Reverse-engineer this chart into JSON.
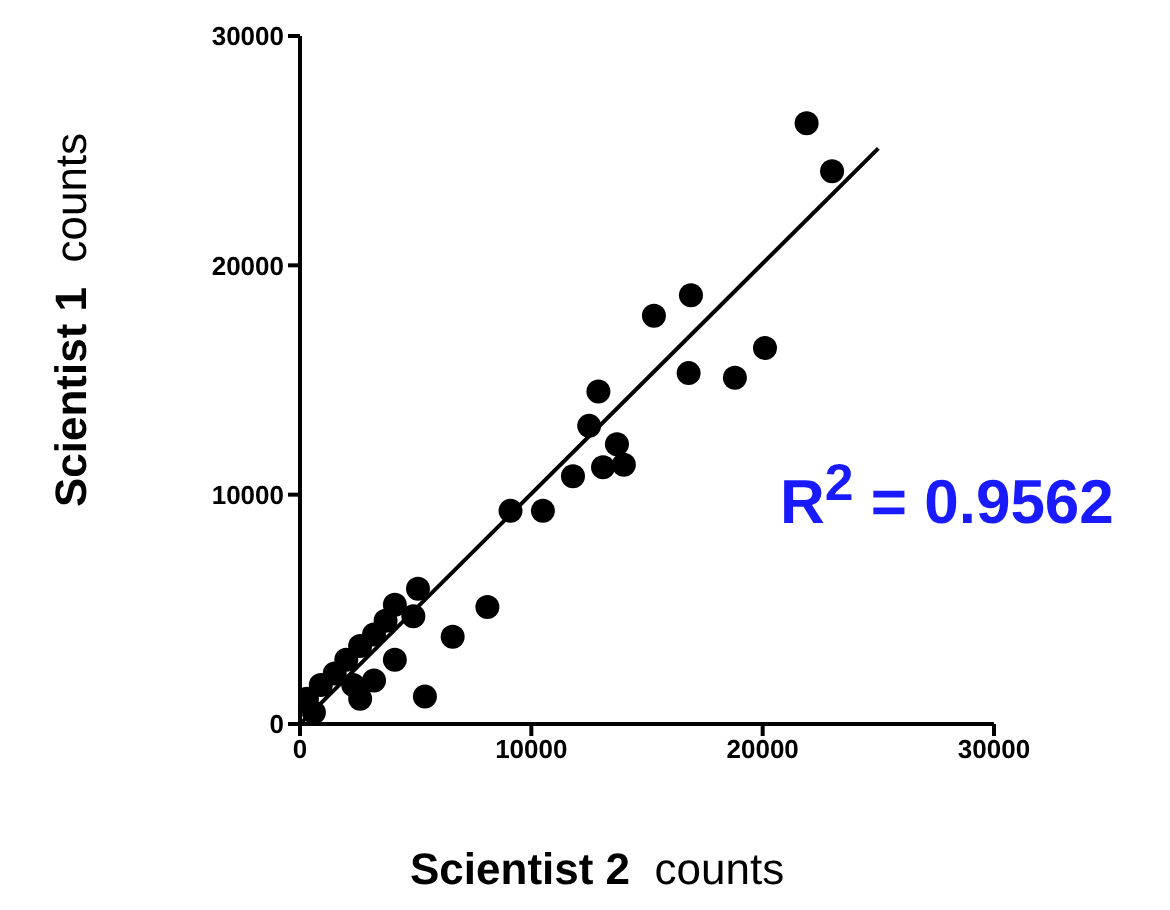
{
  "chart_data": {
    "type": "scatter",
    "xlabel": "Scientist 2  counts",
    "ylabel": "Scientist 1  counts",
    "xlim": [
      0,
      30000
    ],
    "ylim": [
      0,
      30000
    ],
    "xticks": [
      0,
      10000,
      20000,
      30000
    ],
    "yticks": [
      0,
      10000,
      20000,
      30000
    ],
    "annotations": [
      "R$^{2}$ = 0.9562"
    ],
    "series": [
      {
        "marker": "circle",
        "color": "#000000",
        "x": [
          21900,
          23000,
          16900,
          15300,
          20100,
          16800,
          18800,
          12900,
          12500,
          13700,
          14000,
          13100,
          11800,
          10500,
          9100,
          5100,
          8100,
          6600,
          5400,
          4100,
          2600,
          3700,
          3200,
          2600,
          2000,
          4100,
          1500,
          900,
          3200,
          300,
          600,
          2300,
          4900
        ],
        "values": [
          26200,
          24100,
          18700,
          17800,
          16400,
          15300,
          15100,
          14500,
          13000,
          12200,
          11300,
          11200,
          10800,
          9300,
          9300,
          5900,
          5100,
          3800,
          1200,
          5200,
          1100,
          4500,
          3900,
          3400,
          2800,
          2800,
          2200,
          1700,
          1900,
          1100,
          500,
          1700,
          4700
        ]
      },
      {
        "type": "line",
        "marker": "none",
        "color": "#000000",
        "x": [
          0,
          25000
        ],
        "values": [
          0,
          25100
        ]
      }
    ]
  }
}
